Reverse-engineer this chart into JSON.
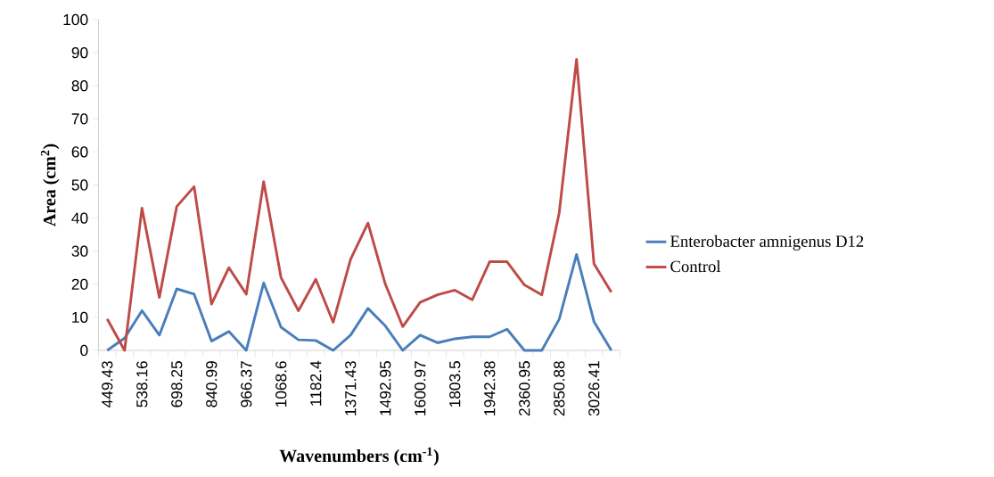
{
  "chart_data": {
    "type": "line",
    "xlabel": "Wavenumbers (cm$^{-1}$)",
    "ylabel": "Area (cm$^{2}$)",
    "categories": [
      "449.43",
      null,
      "538.16",
      null,
      "698.25",
      null,
      "840.99",
      null,
      "966.37",
      null,
      "1068.6",
      null,
      "1182.4",
      null,
      "1371.43",
      null,
      "1492.95",
      null,
      "1600.97",
      null,
      "1803.5",
      null,
      "1942.38",
      null,
      "2360.95",
      null,
      "2850.88",
      null,
      "3026.41",
      null
    ],
    "series": [
      {
        "name": "Enterobacter amnigenus D12",
        "color": "#4a7ebb",
        "values": [
          0,
          3.7,
          12,
          4.6,
          18.6,
          17,
          2.8,
          5.7,
          0,
          20.4,
          7,
          3.2,
          3,
          0,
          4.6,
          12.7,
          7.4,
          0,
          4.6,
          2.3,
          3.5,
          4.1,
          4.1,
          6.4,
          0,
          0,
          9.4,
          29,
          8.7,
          0
        ]
      },
      {
        "name": "Control",
        "color": "#be4b48",
        "values": [
          9.5,
          0,
          43,
          16,
          43.5,
          49.5,
          14,
          25,
          17,
          51,
          22,
          12,
          21.5,
          8.5,
          27.5,
          38.5,
          20,
          7.2,
          14.5,
          16.8,
          18.2,
          15.3,
          26.8,
          26.8,
          19.8,
          16.8,
          41.5,
          88,
          26.2,
          17.6
        ]
      }
    ],
    "ylim": [
      0,
      100
    ],
    "yticks": [
      0,
      10,
      20,
      30,
      40,
      50,
      60,
      70,
      80,
      90,
      100
    ],
    "legend": "right"
  }
}
